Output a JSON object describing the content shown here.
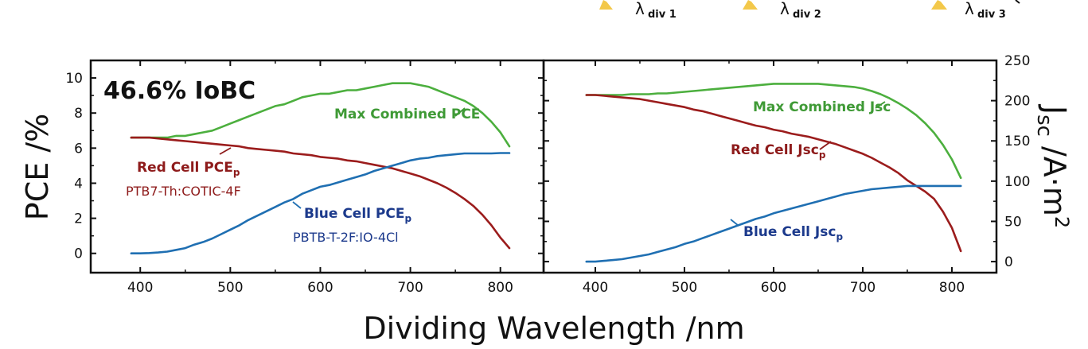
{
  "chart_data": [
    {
      "type": "line",
      "panel": "left",
      "title": "",
      "annotation": "46.6% IoBC",
      "xlabel": "Dividing Wavelength /nm",
      "ylabel": "PCE /%",
      "xlim": [
        345,
        848
      ],
      "ylim": [
        -1.1,
        11
      ],
      "xticks": [
        "400",
        "500",
        "600",
        "700",
        "800"
      ],
      "yticks": [
        "0",
        "2",
        "4",
        "6",
        "8",
        "10"
      ],
      "series": [
        {
          "name": "Max Combined PCE",
          "color": "#4caf3e",
          "x": [
            390,
            400,
            410,
            420,
            430,
            440,
            450,
            460,
            470,
            480,
            490,
            500,
            510,
            520,
            530,
            540,
            550,
            560,
            570,
            580,
            590,
            600,
            610,
            620,
            630,
            640,
            650,
            660,
            670,
            680,
            690,
            700,
            710,
            720,
            730,
            740,
            750,
            760,
            770,
            780,
            790,
            800,
            810
          ],
          "y": [
            6.6,
            6.6,
            6.6,
            6.6,
            6.6,
            6.7,
            6.7,
            6.8,
            6.9,
            7.0,
            7.2,
            7.4,
            7.6,
            7.8,
            8.0,
            8.2,
            8.4,
            8.5,
            8.7,
            8.9,
            9.0,
            9.1,
            9.1,
            9.2,
            9.3,
            9.3,
            9.4,
            9.5,
            9.6,
            9.7,
            9.7,
            9.7,
            9.6,
            9.5,
            9.3,
            9.1,
            8.9,
            8.7,
            8.4,
            8.0,
            7.5,
            6.9,
            6.1
          ]
        },
        {
          "name": "Red Cell PCE",
          "name_sub": "p",
          "subtitle": "PTB7-Th:COTIC-4F",
          "color": "#9b1c1c",
          "x": [
            390,
            400,
            410,
            420,
            430,
            440,
            450,
            460,
            470,
            480,
            490,
            500,
            510,
            520,
            530,
            540,
            550,
            560,
            570,
            580,
            590,
            600,
            610,
            620,
            630,
            640,
            650,
            660,
            670,
            680,
            690,
            700,
            710,
            720,
            730,
            740,
            750,
            760,
            770,
            780,
            790,
            800,
            810
          ],
          "y": [
            6.6,
            6.6,
            6.6,
            6.55,
            6.5,
            6.45,
            6.4,
            6.35,
            6.3,
            6.25,
            6.2,
            6.15,
            6.1,
            6.0,
            5.95,
            5.9,
            5.85,
            5.8,
            5.7,
            5.65,
            5.6,
            5.5,
            5.45,
            5.4,
            5.3,
            5.25,
            5.15,
            5.05,
            4.95,
            4.85,
            4.7,
            4.55,
            4.4,
            4.2,
            4.0,
            3.75,
            3.45,
            3.1,
            2.7,
            2.2,
            1.6,
            0.9,
            0.3
          ]
        },
        {
          "name": "Blue Cell PCE",
          "name_sub": "p",
          "subtitle": "PBTB-T-2F:IO-4Cl",
          "color": "#1f6fb2",
          "x": [
            390,
            400,
            410,
            420,
            430,
            440,
            450,
            460,
            470,
            480,
            490,
            500,
            510,
            520,
            530,
            540,
            550,
            560,
            570,
            580,
            590,
            600,
            610,
            620,
            630,
            640,
            650,
            660,
            670,
            680,
            690,
            700,
            710,
            720,
            730,
            740,
            750,
            760,
            770,
            780,
            790,
            800,
            810
          ],
          "y": [
            0.0,
            0.0,
            0.02,
            0.05,
            0.1,
            0.2,
            0.3,
            0.5,
            0.65,
            0.85,
            1.1,
            1.35,
            1.6,
            1.9,
            2.15,
            2.4,
            2.65,
            2.9,
            3.1,
            3.4,
            3.6,
            3.8,
            3.9,
            4.05,
            4.2,
            4.35,
            4.5,
            4.7,
            4.85,
            5.0,
            5.15,
            5.3,
            5.4,
            5.45,
            5.55,
            5.6,
            5.65,
            5.7,
            5.7,
            5.7,
            5.7,
            5.72,
            5.72
          ]
        }
      ]
    },
    {
      "type": "line",
      "panel": "right",
      "title": "",
      "xlabel": "Dividing Wavelength /nm",
      "ylabel": "Jsc /A·m2",
      "ylabel_main": "J",
      "ylabel_sub": "sc",
      "ylabel_unit": " /A·m",
      "ylabel_sup": "2",
      "xlim": [
        342,
        850
      ],
      "ylim": [
        -13.75,
        250
      ],
      "xticks": [
        "400",
        "500",
        "600",
        "700",
        "800"
      ],
      "yticks": [
        "0",
        "50",
        "100",
        "150",
        "200",
        "250"
      ],
      "series": [
        {
          "name": "Max Combined Jsc",
          "color": "#4caf3e",
          "x": [
            390,
            400,
            410,
            420,
            430,
            440,
            450,
            460,
            470,
            480,
            490,
            500,
            510,
            520,
            530,
            540,
            550,
            560,
            570,
            580,
            590,
            600,
            610,
            620,
            630,
            640,
            650,
            660,
            670,
            680,
            690,
            700,
            710,
            720,
            730,
            740,
            750,
            760,
            770,
            780,
            790,
            800,
            810
          ],
          "y": [
            207,
            207,
            207,
            207,
            207,
            208,
            208,
            208,
            209,
            209,
            210,
            211,
            212,
            213,
            214,
            215,
            216,
            217,
            218,
            219,
            220,
            221,
            221,
            221,
            221,
            221,
            221,
            220,
            219,
            218,
            217,
            215,
            212,
            208,
            203,
            197,
            190,
            182,
            172,
            160,
            145,
            127,
            104
          ]
        },
        {
          "name": "Red Cell Jsc",
          "name_sub": "p",
          "color": "#9b1c1c",
          "x": [
            390,
            400,
            410,
            420,
            430,
            440,
            450,
            460,
            470,
            480,
            490,
            500,
            510,
            520,
            530,
            540,
            550,
            560,
            570,
            580,
            590,
            600,
            610,
            620,
            630,
            640,
            650,
            660,
            670,
            680,
            690,
            700,
            710,
            720,
            730,
            740,
            750,
            760,
            770,
            780,
            790,
            800,
            810
          ],
          "y": [
            207,
            207,
            206,
            205,
            204,
            203,
            202,
            200,
            198,
            196,
            194,
            192,
            189,
            187,
            184,
            181,
            178,
            175,
            172,
            169,
            167,
            164,
            162,
            159,
            157,
            155,
            152,
            149,
            146,
            142,
            138,
            134,
            129,
            123,
            117,
            110,
            101,
            94,
            87,
            78,
            62,
            42,
            13
          ]
        },
        {
          "name": "Blue Cell Jsc",
          "name_sub": "p",
          "color": "#1f6fb2",
          "x": [
            390,
            400,
            410,
            420,
            430,
            440,
            450,
            460,
            470,
            480,
            490,
            500,
            510,
            520,
            530,
            540,
            550,
            560,
            570,
            580,
            590,
            600,
            610,
            620,
            630,
            640,
            650,
            660,
            670,
            680,
            690,
            700,
            710,
            720,
            730,
            740,
            750,
            760,
            770,
            780,
            790,
            800,
            810
          ],
          "y": [
            0,
            0,
            1,
            2,
            3,
            5,
            7,
            9,
            12,
            15,
            18,
            22,
            25,
            29,
            33,
            37,
            41,
            45,
            49,
            53,
            56,
            60,
            63,
            66,
            69,
            72,
            75,
            78,
            81,
            84,
            86,
            88,
            90,
            91,
            92,
            93,
            94,
            94,
            94,
            94,
            94,
            94,
            94
          ]
        }
      ]
    }
  ],
  "top_labels": {
    "lambda": "λ",
    "div1": "div 1",
    "div2": "div 2",
    "div3": "div 3"
  },
  "colors": {
    "marker": "#f3c84a",
    "axis": "#111111"
  }
}
